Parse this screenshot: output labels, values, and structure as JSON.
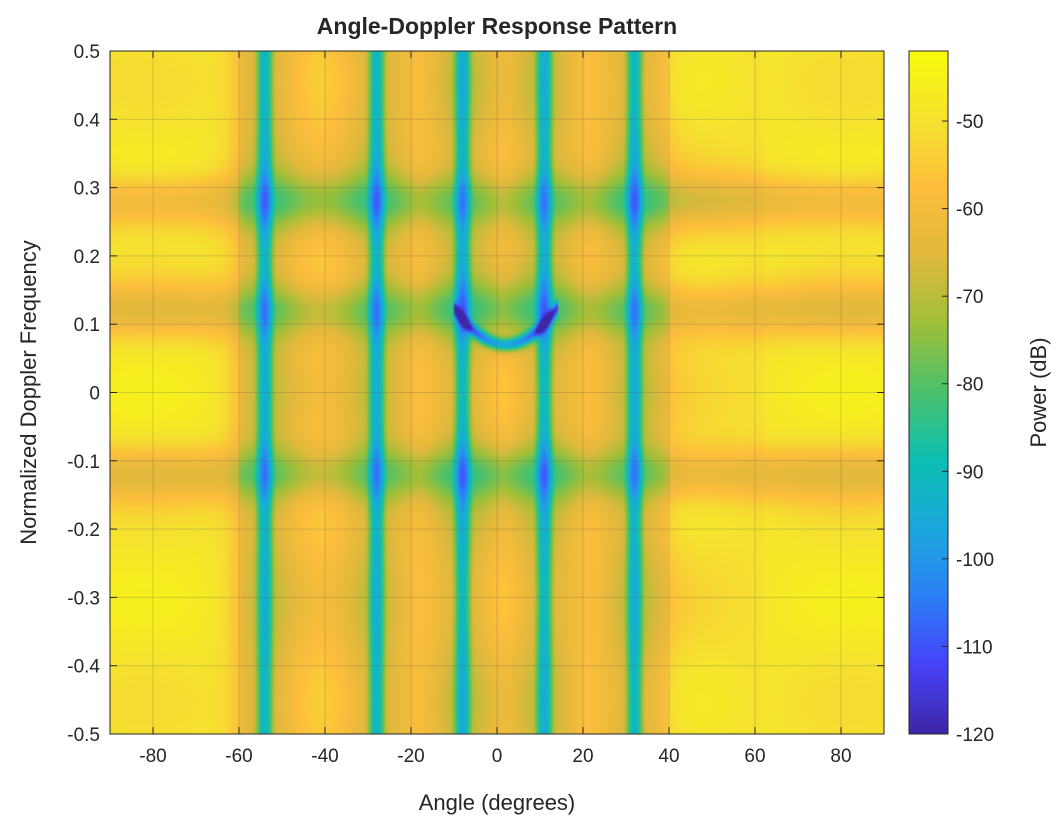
{
  "chart_data": {
    "type": "heatmap",
    "title": "Angle-Doppler Response Pattern",
    "xlabel": "Angle (degrees)",
    "ylabel": "Normalized Doppler Frequency",
    "xlim": [
      -90,
      90
    ],
    "ylim": [
      -0.5,
      0.5
    ],
    "xticks": [
      -80,
      -60,
      -40,
      -20,
      0,
      20,
      40,
      60,
      80
    ],
    "xtick_labels": [
      "-80",
      "-60",
      "-40",
      "-20",
      "0",
      "20",
      "40",
      "60",
      "80"
    ],
    "yticks": [
      -0.5,
      -0.4,
      -0.3,
      -0.2,
      -0.1,
      0,
      0.1,
      0.2,
      0.3,
      0.4,
      0.5
    ],
    "ytick_labels": [
      "-0.5",
      "-0.4",
      "-0.3",
      "-0.2",
      "-0.1",
      "0",
      "0.1",
      "0.2",
      "0.3",
      "0.4",
      "0.5"
    ],
    "grid": true,
    "colormap": "parula",
    "colormap_stops": [
      "#3e26a8",
      "#4743f8",
      "#2c7ff6",
      "#1ca8dd",
      "#0cbfb3",
      "#4ac16d",
      "#9ebf39",
      "#e0b93c",
      "#fdbd3c",
      "#f5e22f",
      "#f9fb0e"
    ],
    "colorbar": {
      "label": "Power (dB)",
      "range": [
        -120,
        -42
      ],
      "ticks": [
        -120,
        -110,
        -100,
        -90,
        -80,
        -70,
        -60,
        -50
      ],
      "tick_labels": [
        "-120",
        "-110",
        "-100",
        "-90",
        "-80",
        "-70",
        "-60",
        "-50"
      ]
    },
    "null_angles_deg": [
      -54,
      -28,
      -8,
      11,
      32
    ],
    "null_doppler_rows": [
      0.28,
      0.12,
      -0.12
    ],
    "field_max_db": -50,
    "field_min_db": -120
  }
}
